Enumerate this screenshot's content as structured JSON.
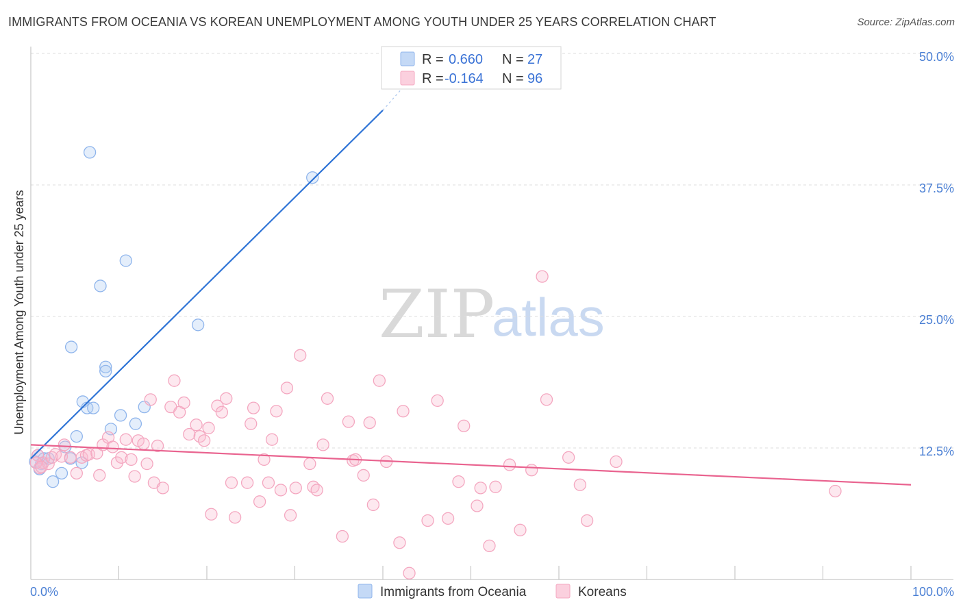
{
  "title": "IMMIGRANTS FROM OCEANIA VS KOREAN UNEMPLOYMENT AMONG YOUTH UNDER 25 YEARS CORRELATION CHART",
  "source": "Source: ZipAtlas.com",
  "watermark": {
    "zip": "ZIP",
    "atlas": "atlas"
  },
  "legend_top": {
    "r_label": "R =",
    "n_label": "N =",
    "rows": [
      {
        "r": "0.660",
        "n": "27"
      },
      {
        "r": "-0.164",
        "n": "96"
      }
    ]
  },
  "chart_data": {
    "type": "scatter",
    "xlabel": "",
    "ylabel": "Unemployment Among Youth under 25 years",
    "xlim": [
      0,
      100
    ],
    "ylim": [
      0,
      50
    ],
    "x_tick_labels": [
      "0.0%",
      "100.0%"
    ],
    "y_ticks": [
      12.5,
      25.0,
      37.5,
      50.0
    ],
    "y_tick_labels": [
      "12.5%",
      "25.0%",
      "37.5%",
      "50.0%"
    ],
    "grid": "horizontal-dashed",
    "legend_placement": "top-center",
    "series": [
      {
        "name": "Immigrants from Oceania",
        "color": "#8fb5ec",
        "line_color": "#2f74d6",
        "points": [
          [
            0.5,
            11.2
          ],
          [
            0.8,
            11.8
          ],
          [
            1.2,
            11.0
          ],
          [
            1.5,
            11.5
          ],
          [
            2.0,
            11.5
          ],
          [
            2.5,
            9.3
          ],
          [
            3.5,
            10.1
          ],
          [
            3.9,
            12.6
          ],
          [
            4.5,
            11.5
          ],
          [
            4.6,
            22.1
          ],
          [
            5.2,
            13.6
          ],
          [
            5.8,
            11.1
          ],
          [
            5.9,
            16.9
          ],
          [
            6.4,
            16.3
          ],
          [
            7.1,
            16.3
          ],
          [
            6.7,
            40.6
          ],
          [
            7.9,
            27.9
          ],
          [
            8.5,
            20.2
          ],
          [
            8.5,
            19.8
          ],
          [
            9.1,
            14.3
          ],
          [
            10.2,
            15.6
          ],
          [
            10.8,
            30.3
          ],
          [
            11.9,
            14.8
          ],
          [
            12.9,
            16.4
          ],
          [
            19.0,
            24.2
          ],
          [
            32.0,
            38.2
          ],
          [
            1.0,
            10.5
          ]
        ],
        "trend": {
          "x": [
            0,
            40
          ],
          "y": [
            11.5,
            44.6
          ],
          "dashed_to": [
            42.0,
            46.5
          ]
        }
      },
      {
        "name": "Koreans",
        "color": "#f4a7c0",
        "line_color": "#e9638f",
        "points": [
          [
            0.8,
            11.8
          ],
          [
            1.0,
            10.6
          ],
          [
            1.4,
            11.1
          ],
          [
            2.0,
            11.0
          ],
          [
            2.4,
            11.6
          ],
          [
            2.8,
            11.9
          ],
          [
            3.5,
            11.7
          ],
          [
            3.8,
            12.8
          ],
          [
            4.5,
            11.6
          ],
          [
            5.2,
            10.1
          ],
          [
            5.8,
            11.6
          ],
          [
            6.3,
            11.8
          ],
          [
            6.6,
            11.9
          ],
          [
            7.5,
            12.0
          ],
          [
            7.8,
            9.9
          ],
          [
            8.2,
            12.8
          ],
          [
            8.8,
            13.5
          ],
          [
            9.3,
            12.6
          ],
          [
            9.8,
            11.1
          ],
          [
            10.3,
            11.6
          ],
          [
            10.8,
            13.3
          ],
          [
            11.4,
            11.4
          ],
          [
            11.8,
            9.8
          ],
          [
            12.2,
            13.2
          ],
          [
            12.8,
            12.9
          ],
          [
            13.2,
            11.0
          ],
          [
            13.6,
            17.1
          ],
          [
            14.0,
            9.2
          ],
          [
            14.4,
            12.7
          ],
          [
            15.0,
            8.7
          ],
          [
            15.9,
            16.4
          ],
          [
            16.3,
            18.9
          ],
          [
            16.9,
            15.9
          ],
          [
            17.4,
            16.8
          ],
          [
            18.0,
            13.8
          ],
          [
            18.8,
            14.7
          ],
          [
            19.2,
            13.6
          ],
          [
            19.7,
            13.2
          ],
          [
            20.2,
            14.4
          ],
          [
            20.5,
            6.2
          ],
          [
            21.2,
            16.5
          ],
          [
            21.7,
            15.9
          ],
          [
            22.2,
            17.2
          ],
          [
            22.8,
            9.2
          ],
          [
            23.2,
            5.9
          ],
          [
            24.6,
            9.2
          ],
          [
            25.0,
            14.8
          ],
          [
            25.3,
            16.3
          ],
          [
            26.0,
            7.4
          ],
          [
            26.5,
            11.4
          ],
          [
            27.0,
            9.2
          ],
          [
            27.4,
            13.3
          ],
          [
            27.9,
            16.0
          ],
          [
            28.4,
            8.5
          ],
          [
            29.1,
            18.2
          ],
          [
            29.5,
            6.1
          ],
          [
            30.1,
            8.7
          ],
          [
            30.6,
            21.3
          ],
          [
            31.7,
            11.0
          ],
          [
            32.1,
            8.8
          ],
          [
            32.5,
            8.5
          ],
          [
            33.2,
            12.8
          ],
          [
            33.7,
            17.2
          ],
          [
            35.4,
            4.1
          ],
          [
            36.1,
            15.0
          ],
          [
            36.6,
            11.3
          ],
          [
            36.9,
            11.4
          ],
          [
            37.8,
            9.9
          ],
          [
            38.5,
            14.9
          ],
          [
            38.9,
            7.1
          ],
          [
            39.6,
            18.9
          ],
          [
            40.4,
            11.2
          ],
          [
            41.9,
            3.5
          ],
          [
            42.3,
            16.0
          ],
          [
            43.0,
            0.6
          ],
          [
            45.1,
            5.6
          ],
          [
            46.2,
            17.0
          ],
          [
            47.4,
            5.8
          ],
          [
            48.6,
            9.3
          ],
          [
            49.2,
            14.6
          ],
          [
            50.7,
            7.0
          ],
          [
            51.1,
            8.7
          ],
          [
            52.1,
            3.2
          ],
          [
            52.8,
            8.8
          ],
          [
            54.4,
            10.9
          ],
          [
            55.6,
            4.7
          ],
          [
            56.9,
            10.4
          ],
          [
            58.1,
            28.8
          ],
          [
            58.6,
            17.1
          ],
          [
            61.1,
            11.6
          ],
          [
            62.4,
            9.0
          ],
          [
            63.2,
            5.6
          ],
          [
            66.5,
            11.2
          ],
          [
            91.4,
            8.4
          ],
          [
            0.6,
            11.1
          ],
          [
            1.2,
            10.7
          ]
        ],
        "trend": {
          "x": [
            0,
            100
          ],
          "y": [
            12.8,
            9.0
          ]
        }
      }
    ]
  }
}
